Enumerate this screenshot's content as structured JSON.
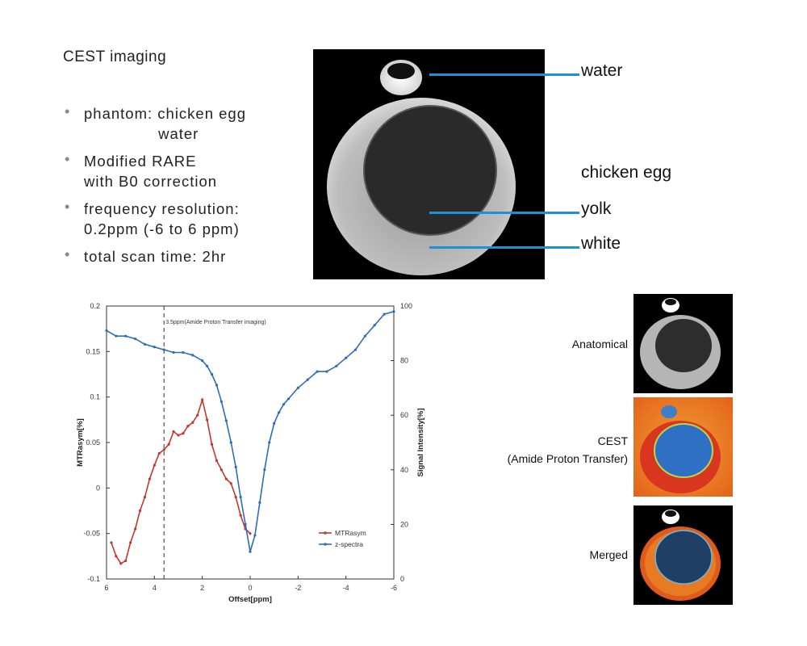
{
  "header": {
    "title": "CEST imaging",
    "bullets": [
      {
        "line1": "phantom: chicken egg",
        "line2": "               water"
      },
      {
        "line1": "Modified RARE",
        "line2": "with B0 correction"
      },
      {
        "line1": "frequency resolution:",
        "line2": "0.2ppm (-6 to 6 ppm)"
      },
      {
        "line1": "total scan time: 2hr",
        "line2": ""
      }
    ]
  },
  "mri_labels": {
    "water": "water",
    "chicken_egg": "chicken egg",
    "yolk": "yolk",
    "white": "white"
  },
  "thumbnails": {
    "anatomical": "Anatomical",
    "cest_line1": "CEST",
    "cest_line2": "(Amide Proton Transfer)",
    "merged": "Merged"
  },
  "colors": {
    "mtr": "#c0392b",
    "zspec": "#2e6db4",
    "callout": "#1f8fd6"
  },
  "chart_data": {
    "type": "line",
    "xlabel": "Offset[ppm]",
    "ylabel_left": "MTRasym[%]",
    "ylabel_right": "Signal Intensity[%]",
    "x_ticks": [
      "6",
      "4",
      "2",
      "0",
      "-2",
      "-4",
      "-6"
    ],
    "y_left_ticks": [
      "0.2",
      "0.15",
      "0.1",
      "0.05",
      "0",
      "-0.05",
      "-0.1"
    ],
    "y_right_ticks": [
      "100",
      "80",
      "60",
      "40",
      "20",
      "0"
    ],
    "xlim": [
      6,
      -6
    ],
    "ylim_left": [
      -0.1,
      0.2
    ],
    "ylim_right": [
      0,
      100
    ],
    "annotation": "3.5ppm(Amide Proton Transfer imaging)",
    "annotation_x": 3.6,
    "series": [
      {
        "name": "MTRasym",
        "axis": "left",
        "x": [
          5.8,
          5.6,
          5.4,
          5.2,
          5.0,
          4.8,
          4.6,
          4.4,
          4.2,
          4.0,
          3.8,
          3.6,
          3.4,
          3.2,
          3.0,
          2.8,
          2.6,
          2.4,
          2.2,
          2.0,
          1.8,
          1.6,
          1.4,
          1.2,
          1.0,
          0.8,
          0.6,
          0.4,
          0.2,
          0.0
        ],
        "values": [
          -0.06,
          -0.075,
          -0.083,
          -0.08,
          -0.06,
          -0.045,
          -0.025,
          -0.01,
          0.01,
          0.025,
          0.038,
          0.042,
          0.048,
          0.062,
          0.058,
          0.06,
          0.068,
          0.072,
          0.08,
          0.097,
          0.075,
          0.048,
          0.03,
          0.02,
          0.01,
          0.005,
          -0.01,
          -0.03,
          -0.045,
          -0.05
        ]
      },
      {
        "name": "z-spectra",
        "axis": "right",
        "x": [
          6.0,
          5.6,
          5.2,
          4.8,
          4.4,
          4.0,
          3.6,
          3.2,
          2.8,
          2.4,
          2.0,
          1.8,
          1.6,
          1.4,
          1.2,
          1.0,
          0.8,
          0.6,
          0.4,
          0.2,
          0.0,
          -0.2,
          -0.4,
          -0.6,
          -0.8,
          -1.0,
          -1.2,
          -1.4,
          -1.6,
          -2.0,
          -2.4,
          -2.8,
          -3.2,
          -3.6,
          -4.0,
          -4.4,
          -4.8,
          -5.2,
          -5.6,
          -6.0
        ],
        "values": [
          91,
          89,
          89,
          88,
          86,
          85,
          84,
          83,
          83,
          82,
          80,
          78,
          75,
          71,
          65,
          58,
          50,
          41,
          30,
          20,
          10,
          16,
          28,
          40,
          50,
          57,
          61,
          64,
          66,
          70,
          73,
          76,
          76,
          78,
          81,
          84,
          89,
          93,
          97,
          98
        ]
      }
    ],
    "legend": [
      "MTRasym",
      "z-spectra"
    ],
    "legend_position": "bottom-right"
  }
}
